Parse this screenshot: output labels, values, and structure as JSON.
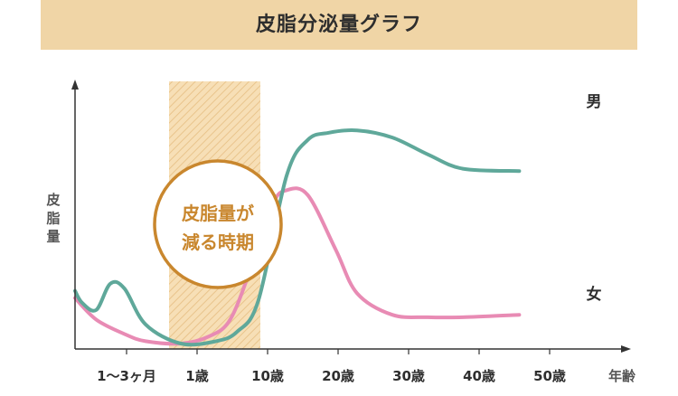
{
  "title": "皮脂分泌量グラフ",
  "chart_data": {
    "type": "line",
    "title": "皮脂分泌量グラフ",
    "ylabel": "皮脂量",
    "xlabel": "年齢",
    "x_ticks": [
      "1〜3ヶ月",
      "1歳",
      "10歳",
      "20歳",
      "30歳",
      "40歳",
      "50歳"
    ],
    "highlight": {
      "label_lines": [
        "皮脂量が",
        "減る時期"
      ],
      "from": "1歳",
      "to": "10歳"
    },
    "series": [
      {
        "name": "男",
        "color": "#5fa89a",
        "points": [
          [
            0.0,
            22
          ],
          [
            0.1,
            17
          ],
          [
            0.3,
            14
          ],
          [
            0.5,
            25
          ],
          [
            0.7,
            23
          ],
          [
            1.0,
            8
          ],
          [
            1.5,
            0
          ],
          [
            2.0,
            1
          ],
          [
            2.3,
            5
          ],
          [
            2.6,
            18
          ],
          [
            3.0,
            70
          ],
          [
            3.3,
            85
          ],
          [
            3.6,
            88
          ],
          [
            4.0,
            89
          ],
          [
            4.5,
            86
          ],
          [
            5.0,
            79
          ],
          [
            5.5,
            73
          ],
          [
            6.3,
            72
          ]
        ]
      },
      {
        "name": "女",
        "color": "#e88bb4",
        "points": [
          [
            0.0,
            19
          ],
          [
            0.3,
            10
          ],
          [
            0.7,
            4
          ],
          [
            1.0,
            1
          ],
          [
            1.5,
            0
          ],
          [
            1.9,
            3
          ],
          [
            2.2,
            10
          ],
          [
            2.5,
            32
          ],
          [
            2.8,
            58
          ],
          [
            3.0,
            64
          ],
          [
            3.3,
            62
          ],
          [
            3.7,
            39
          ],
          [
            4.0,
            21
          ],
          [
            4.5,
            12
          ],
          [
            5.0,
            11
          ],
          [
            5.5,
            11
          ],
          [
            6.3,
            12
          ]
        ]
      }
    ]
  }
}
